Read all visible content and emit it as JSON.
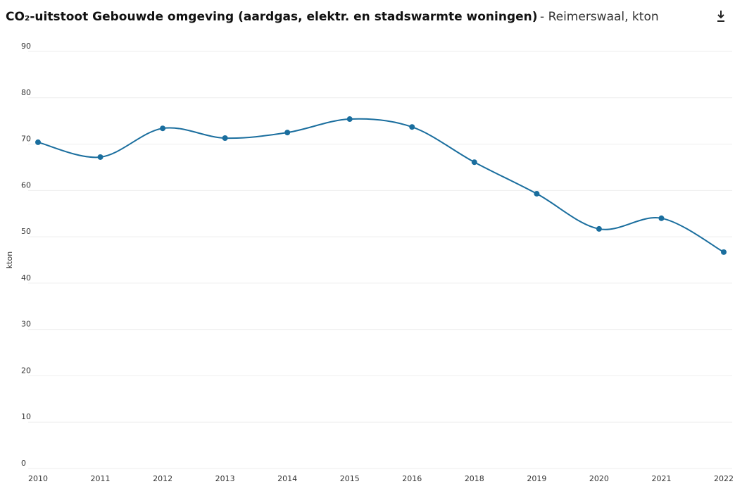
{
  "chart_data": {
    "type": "line",
    "title": "CO₂-uitstoot Gebouwde omgeving (aardgas, elektr. en stadswarmte woningen)",
    "subtitle": "- Reimerswaal, kton",
    "y_label": "kton",
    "categories": [
      "2010",
      "2011",
      "2012",
      "2013",
      "2014",
      "2015",
      "2016",
      "2018",
      "2019",
      "2020",
      "2021",
      "2022"
    ],
    "series": [
      {
        "name": "kton",
        "color": "#1a6e9e",
        "values": [
          70.4,
          67.2,
          73.4,
          71.3,
          72.5,
          75.4,
          73.7,
          66.1,
          59.3,
          51.7,
          54.0,
          46.7
        ]
      }
    ],
    "ylim": [
      0,
      90
    ],
    "yticks": [
      0,
      10,
      20,
      30,
      40,
      50,
      60,
      70,
      80,
      90
    ],
    "grid": true
  }
}
